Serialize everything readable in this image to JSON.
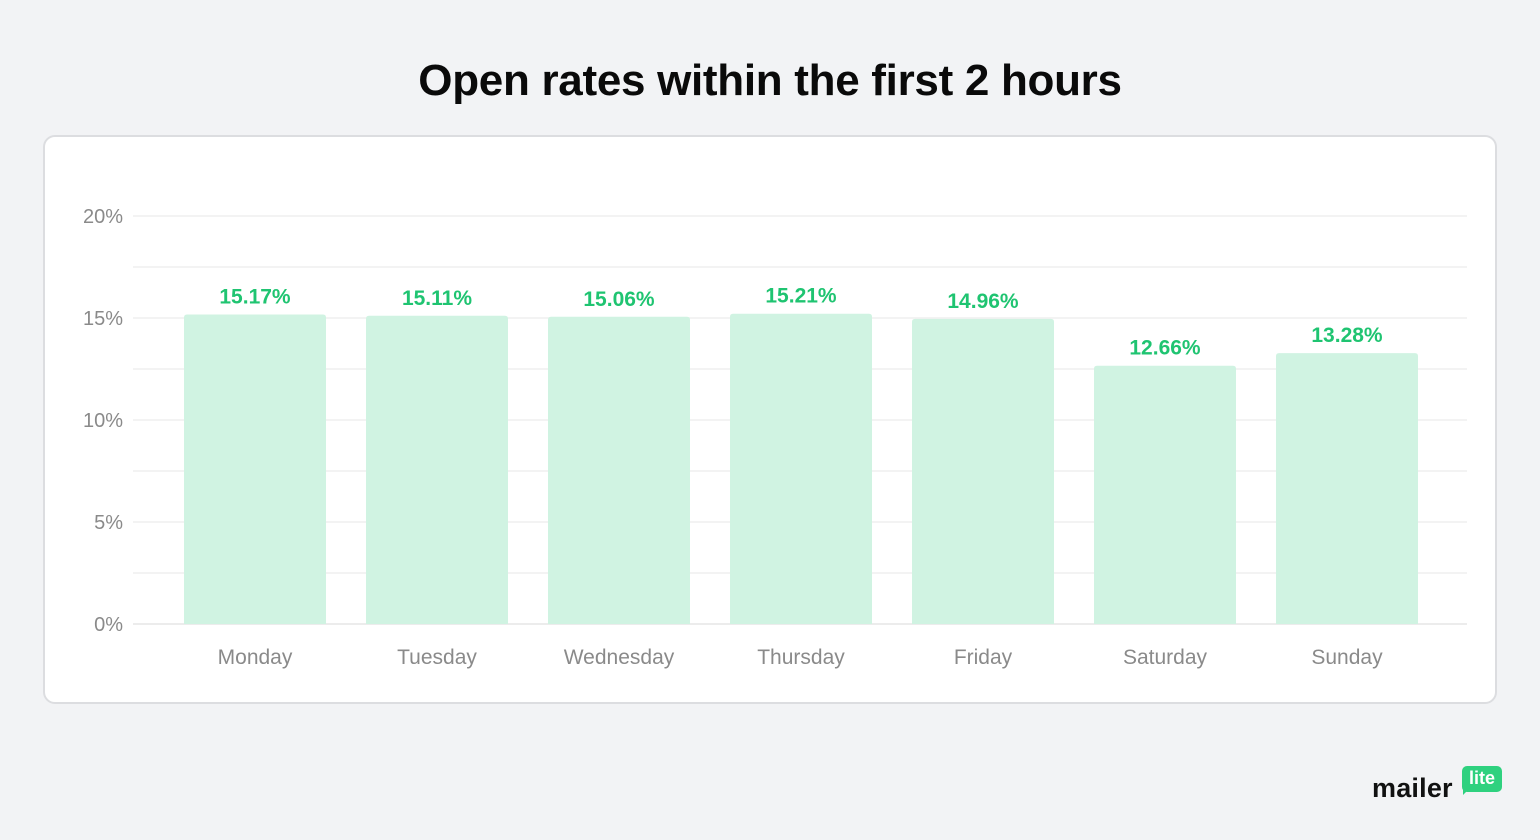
{
  "page": {
    "title": "Open rates within the first 2 hours"
  },
  "brand": {
    "name": "mailer",
    "badge": "lite",
    "accent": "#2fd17f"
  },
  "chart_data": {
    "type": "bar",
    "title": "Open rates within the first 2 hours",
    "xlabel": "",
    "ylabel": "",
    "categories": [
      "Monday",
      "Tuesday",
      "Wednesday",
      "Thursday",
      "Friday",
      "Saturday",
      "Sunday"
    ],
    "values": [
      15.17,
      15.11,
      15.06,
      15.21,
      14.96,
      12.66,
      13.28
    ],
    "data_labels": [
      "15.17%",
      "15.11%",
      "15.06%",
      "15.21%",
      "14.96%",
      "12.66%",
      "13.28%"
    ],
    "ylim": [
      0,
      20
    ],
    "yticks": [
      0,
      5,
      10,
      15,
      20
    ],
    "ytick_labels": [
      "0%",
      "5%",
      "10%",
      "15%",
      "20%"
    ],
    "grid": true,
    "legend": "none",
    "bar_color": "#d0f3e2",
    "label_color": "#1fc471"
  }
}
